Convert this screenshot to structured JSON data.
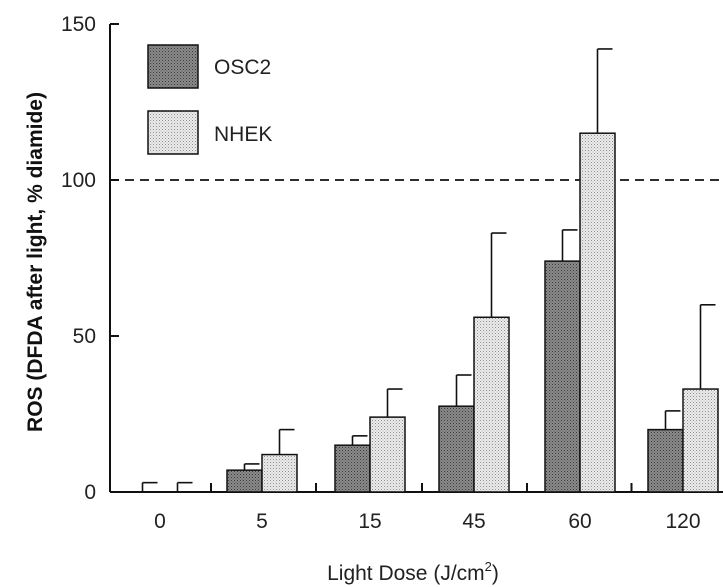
{
  "chart_data": {
    "type": "bar",
    "title": "",
    "xlabel": "Light Dose (J/cm",
    "xlabel_sup": "2",
    "xlabel_close": ")",
    "ylabel": "ROS (DFDA after light, % diamide)",
    "ylim": [
      0,
      150
    ],
    "yticks": [
      0,
      50,
      100,
      150
    ],
    "categories": [
      "0",
      "5",
      "15",
      "45",
      "60",
      "120"
    ],
    "series": [
      {
        "name": "OSC2",
        "values": [
          0,
          7,
          15,
          27.5,
          74,
          20
        ],
        "errors": [
          3,
          2,
          3,
          10,
          10,
          6
        ],
        "fill": "#7a7a7a"
      },
      {
        "name": "NHEK",
        "values": [
          0,
          12,
          24,
          56,
          115,
          33
        ],
        "errors": [
          3,
          8,
          9,
          27,
          27,
          27
        ],
        "fill": "#d9d9d9"
      }
    ],
    "reference_line": 100,
    "legend_position": "top-left",
    "grid": false
  }
}
